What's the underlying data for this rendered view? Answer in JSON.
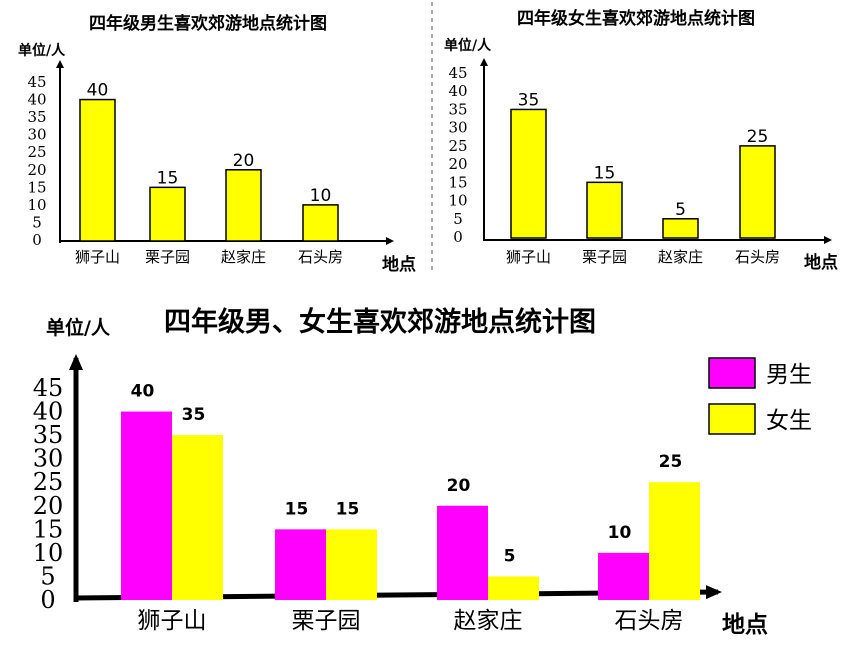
{
  "colors": {
    "boys": "#ff00ff",
    "girls": "#ffff00",
    "axis": "#000000",
    "divider": "#555555"
  },
  "chart_data": [
    {
      "type": "bar",
      "title": "四年级男生喜欢郊游地点统计图",
      "ylabel": "单位/人",
      "xlabel": "地点",
      "categories": [
        "狮子山",
        "栗子园",
        "赵家庄",
        "石头房"
      ],
      "values": [
        40,
        15,
        20,
        10
      ],
      "ylim": [
        0,
        45
      ],
      "yticks": [
        "0",
        "5",
        "10",
        "15",
        "20",
        "25",
        "30",
        "35",
        "40",
        "45"
      ],
      "color": "#ffff00"
    },
    {
      "type": "bar",
      "title": "四年级女生喜欢郊游地点统计图",
      "ylabel": "单位/人",
      "xlabel": "地点",
      "categories": [
        "狮子山",
        "栗子园",
        "赵家庄",
        "石头房"
      ],
      "values": [
        35,
        15,
        5,
        25
      ],
      "ylim": [
        0,
        45
      ],
      "yticks": [
        "0",
        "5",
        "10",
        "15",
        "20",
        "25",
        "30",
        "35",
        "40",
        "45"
      ],
      "color": "#ffff00"
    },
    {
      "type": "bar",
      "title": "四年级男、女生喜欢郊游地点统计图",
      "ylabel": "单位/人",
      "xlabel": "地点",
      "categories": [
        "狮子山",
        "栗子园",
        "赵家庄",
        "石头房"
      ],
      "series": [
        {
          "name": "男生",
          "values": [
            40,
            15,
            20,
            10
          ],
          "color": "#ff00ff"
        },
        {
          "name": "女生",
          "values": [
            35,
            15,
            5,
            25
          ],
          "color": "#ffff00"
        }
      ],
      "ylim": [
        0,
        45
      ],
      "yticks": [
        "0",
        "5",
        "10",
        "15",
        "20",
        "25",
        "30",
        "35",
        "40",
        "45"
      ],
      "legend": "top-right"
    }
  ]
}
